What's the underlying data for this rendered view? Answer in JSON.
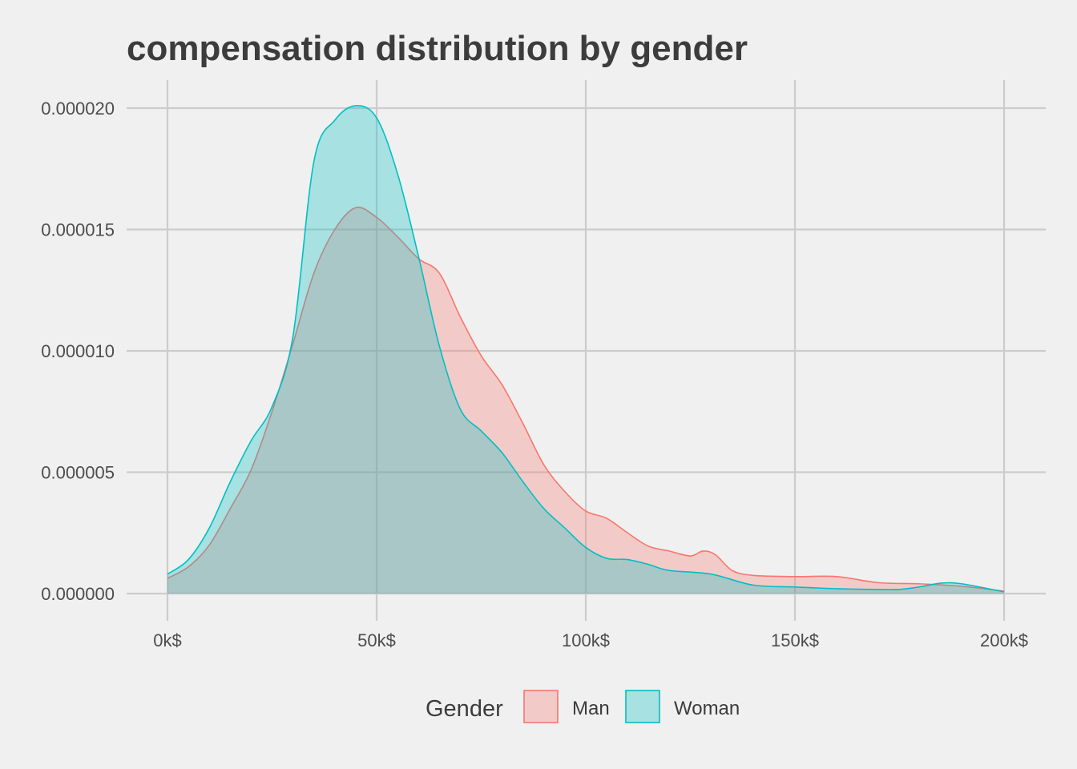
{
  "chart_data": {
    "type": "area",
    "subtype": "density",
    "title": "compensation distribution by gender",
    "xlabel": "",
    "ylabel": "",
    "xlim": [
      0,
      200000
    ],
    "ylim": [
      0,
      2e-05
    ],
    "x_ticks": [
      0,
      50000,
      100000,
      150000,
      200000
    ],
    "x_tick_labels": [
      "0k$",
      "50k$",
      "100k$",
      "150k$",
      "200k$"
    ],
    "y_ticks": [
      0,
      5e-06,
      1e-05,
      1.5e-05,
      2e-05
    ],
    "y_tick_labels": [
      "0.000000",
      "0.000005",
      "0.000010",
      "0.000015",
      "0.000020"
    ],
    "grid": true,
    "legend": {
      "title": "Gender",
      "position": "bottom",
      "entries": [
        "Man",
        "Woman"
      ]
    },
    "x_unit_note": "x values in thousands of $",
    "series": [
      {
        "name": "Man",
        "color": "#F8766D",
        "x": [
          0,
          5,
          10,
          15,
          20,
          25,
          30,
          35,
          40,
          45,
          50,
          55,
          60,
          65,
          70,
          75,
          80,
          85,
          90,
          95,
          100,
          105,
          110,
          115,
          120,
          125,
          128,
          131,
          135,
          140,
          150,
          160,
          170,
          180,
          190,
          200
        ],
        "y": [
          6.3e-07,
          1.1e-06,
          2e-06,
          3.5e-06,
          5.1e-06,
          7.5e-06,
          1.03e-05,
          1.32e-05,
          1.5e-05,
          1.59e-05,
          1.55e-05,
          1.47e-05,
          1.38e-05,
          1.32e-05,
          1.14e-05,
          9.8e-06,
          8.6e-06,
          7e-06,
          5.3e-06,
          4.2e-06,
          3.4e-06,
          3.1e-06,
          2.5e-06,
          1.95e-06,
          1.75e-06,
          1.55e-06,
          1.75e-06,
          1.6e-06,
          9.5e-07,
          7.5e-07,
          7e-07,
          7e-07,
          4.5e-07,
          4e-07,
          3e-07,
          1e-07
        ]
      },
      {
        "name": "Woman",
        "color": "#00BFC4",
        "x": [
          0,
          5,
          10,
          15,
          20,
          25,
          30,
          35,
          40,
          45,
          50,
          55,
          60,
          65,
          70,
          75,
          80,
          85,
          90,
          95,
          100,
          105,
          110,
          115,
          120,
          130,
          140,
          150,
          160,
          170,
          175,
          180,
          185,
          190,
          200
        ],
        "y": [
          8e-07,
          1.4e-06,
          2.7e-06,
          4.6e-06,
          6.3e-06,
          7.7e-06,
          1.06e-05,
          1.78e-05,
          1.95e-05,
          2.01e-05,
          1.96e-05,
          1.73e-05,
          1.39e-05,
          1.02e-05,
          7.6e-06,
          6.7e-06,
          5.8e-06,
          4.6e-06,
          3.5e-06,
          2.7e-06,
          1.9e-06,
          1.45e-06,
          1.4e-06,
          1.2e-06,
          9.5e-07,
          8e-07,
          3.5e-07,
          2.7e-07,
          2e-07,
          1.7e-07,
          1.7e-07,
          2.8e-07,
          4.3e-07,
          4e-07,
          7e-08
        ]
      }
    ]
  }
}
